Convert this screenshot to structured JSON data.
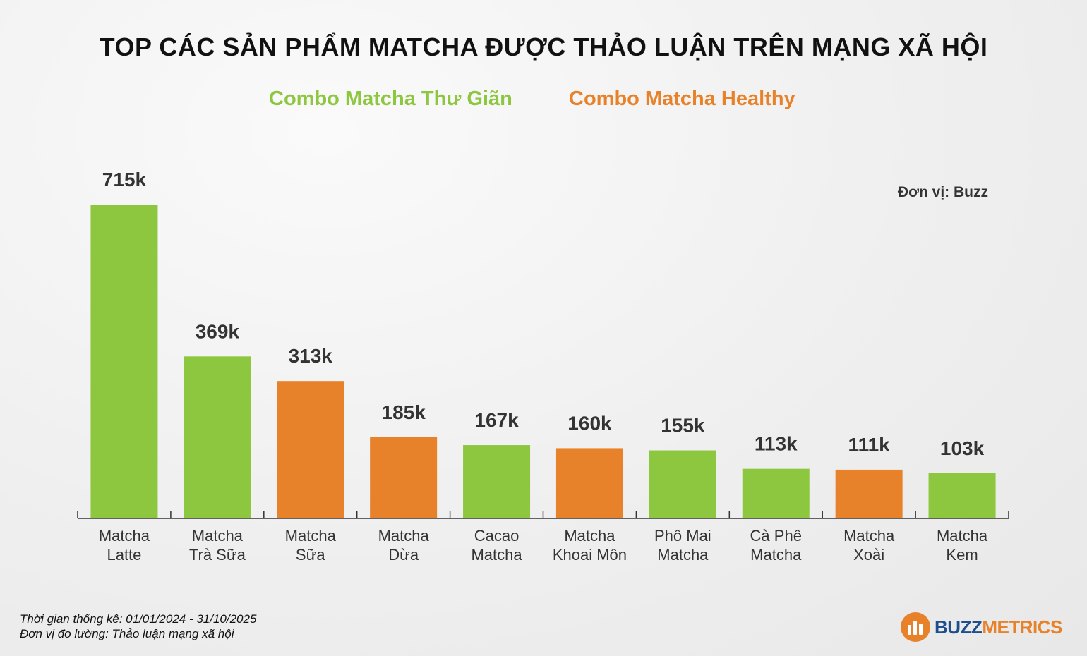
{
  "title": "TOP CÁC SẢN PHẨM MATCHA ĐƯỢC THẢO LUẬN TRÊN MẠNG XÃ HỘI",
  "unit_label": "Đơn vị: Buzz",
  "colors": {
    "thu_gian": "#8dc63f",
    "healthy": "#e8822a",
    "axis": "#333333"
  },
  "chart_data": {
    "type": "bar",
    "categories": [
      [
        "Matcha",
        "Latte"
      ],
      [
        "Matcha",
        "Trà Sữa"
      ],
      [
        "Matcha",
        "Sữa"
      ],
      [
        "Matcha",
        "Dừa"
      ],
      [
        "Cacao",
        "Matcha"
      ],
      [
        "Matcha",
        "Khoai Môn"
      ],
      [
        "Phô Mai",
        "Matcha"
      ],
      [
        "Cà Phê",
        "Matcha"
      ],
      [
        "Matcha",
        "Xoài"
      ],
      [
        "Matcha",
        "Kem"
      ]
    ],
    "values": [
      715,
      369,
      313,
      185,
      167,
      160,
      155,
      113,
      111,
      103
    ],
    "value_labels": [
      "715k",
      "369k",
      "313k",
      "185k",
      "167k",
      "160k",
      "155k",
      "113k",
      "111k",
      "103k"
    ],
    "groups": [
      "thu_gian",
      "thu_gian",
      "healthy",
      "healthy",
      "thu_gian",
      "healthy",
      "thu_gian",
      "thu_gian",
      "healthy",
      "thu_gian"
    ],
    "legend": [
      {
        "key": "thu_gian",
        "name": "Combo Matcha Thư Giãn"
      },
      {
        "key": "healthy",
        "name": "Combo Matcha Healthy"
      }
    ],
    "ylim": [
      0,
      715
    ],
    "grid": false,
    "legend_position": "top"
  },
  "footer": {
    "line1": "Thời gian thống kê: 01/01/2024 - 31/10/2025",
    "line2": "Đơn vị đo lường: Thảo luận mạng xã hội"
  },
  "logo": {
    "part1": "BUZZ",
    "part2": "METRICS"
  }
}
